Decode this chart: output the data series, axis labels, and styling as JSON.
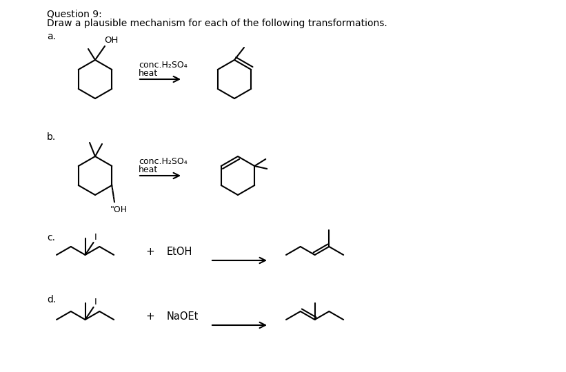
{
  "title": "Question 9:",
  "subtitle": "Draw a plausible mechanism for each of the following transformations.",
  "background_color": "#ffffff",
  "text_color": "#000000",
  "labels": [
    "a.",
    "b.",
    "c.",
    "d."
  ],
  "reagents_a": [
    "conc.H₂SO₄",
    "heat"
  ],
  "reagents_b": [
    "conc.H₂SO₄",
    "heat"
  ],
  "reagent_c": "EtOH",
  "reagent_d": "NaOEt",
  "font_size_title": 10,
  "font_size_label": 10,
  "font_size_reagent": 10
}
